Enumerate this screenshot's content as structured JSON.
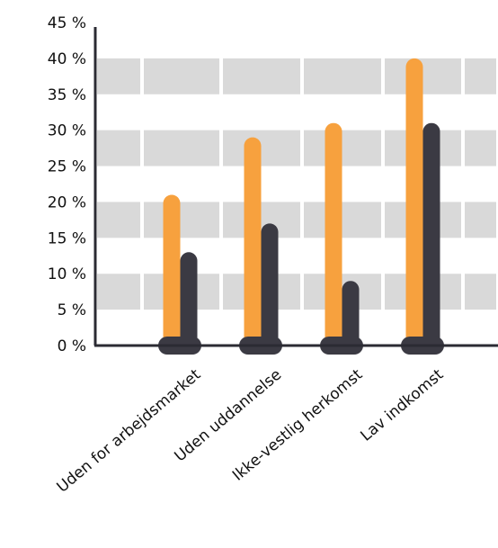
{
  "chart_data": {
    "type": "bar",
    "categories": [
      "Uden for arbejdsmarket",
      "Uden uddannelse",
      "Ikke-vestlig herkomst",
      "Lav indkomst"
    ],
    "series": [
      {
        "values": [
          21,
          29,
          31,
          40
        ],
        "color": "#F7A13E"
      },
      {
        "values": [
          13,
          17,
          9,
          31
        ],
        "color": "#3B3A43"
      }
    ],
    "yticks": [
      "0 %",
      "5 %",
      "10 %",
      "15 %",
      "20 %",
      "25 %",
      "30 %",
      "35 %",
      "40 %",
      "45 %"
    ],
    "ylim": [
      0,
      45
    ],
    "grid": true,
    "colors": {
      "axis": "#2B2B33",
      "band": "#D9D9D9"
    }
  }
}
